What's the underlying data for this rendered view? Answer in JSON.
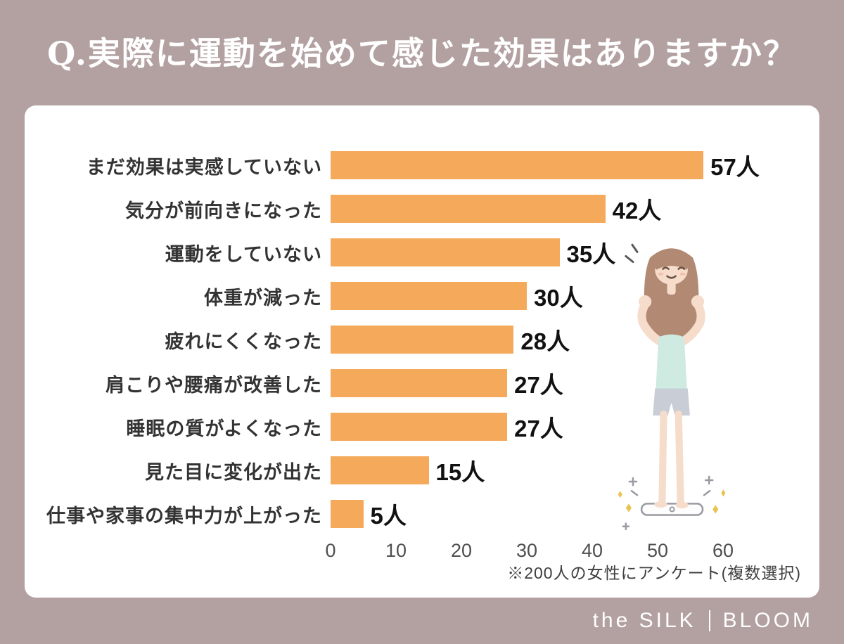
{
  "header": {
    "title": "Q.実際に運動を始めて感じた効果はありますか？"
  },
  "footer": {
    "note": "※200人の女性にアンケート(複数選択)",
    "brand_left": "the SILK",
    "brand_right": "BLOOM"
  },
  "colors": {
    "background": "#b3a1a1",
    "card": "#ffffff",
    "bar": "#f5a95b",
    "title": "#ffffff",
    "label": "#333333",
    "value": "#111111",
    "axis": "#4f4f4f"
  },
  "illustration": {
    "name": "woman-cheering-on-scale-illustration"
  },
  "chart_data": {
    "type": "bar",
    "orientation": "horizontal",
    "title": "Q.実際に運動を始めて感じた効果はありますか？",
    "categories": [
      "まだ効果は実感していない",
      "気分が前向きになった",
      "運動をしていない",
      "体重が減った",
      "疲れにくくなった",
      "肩こりや腰痛が改善した",
      "睡眠の質がよくなった",
      "見た目に変化が出た",
      "仕事や家事の集中力が上がった"
    ],
    "values": [
      57,
      42,
      35,
      30,
      28,
      27,
      27,
      15,
      5
    ],
    "value_suffix": "人",
    "xlabel": "",
    "ylabel": "",
    "xlim": [
      0,
      60
    ],
    "x_ticks": [
      0,
      10,
      20,
      30,
      40,
      50,
      60
    ],
    "grid": false,
    "legend": "none",
    "annotation": "※200人の女性にアンケート(複数選択)"
  }
}
